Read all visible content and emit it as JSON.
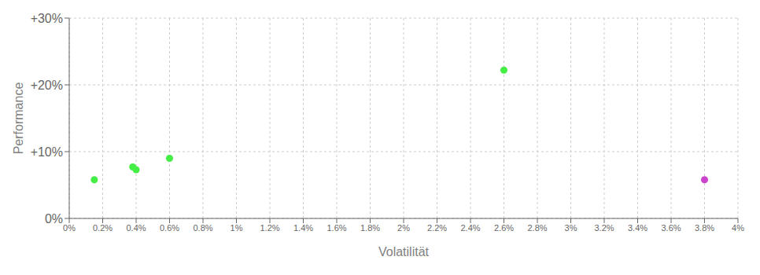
{
  "chart_data": {
    "type": "scatter",
    "xlabel": "Volatilität",
    "ylabel": "Performance",
    "xlim": [
      0,
      0.04
    ],
    "ylim": [
      0,
      0.3
    ],
    "xticks": [
      {
        "value": 0,
        "label": "0%"
      },
      {
        "value": 0.002,
        "label": "0.2%"
      },
      {
        "value": 0.004,
        "label": "0.4%"
      },
      {
        "value": 0.006,
        "label": "0.6%"
      },
      {
        "value": 0.008,
        "label": "0.8%"
      },
      {
        "value": 0.01,
        "label": "1%"
      },
      {
        "value": 0.012,
        "label": "1.2%"
      },
      {
        "value": 0.014,
        "label": "1.4%"
      },
      {
        "value": 0.016,
        "label": "1.6%"
      },
      {
        "value": 0.018,
        "label": "1.8%"
      },
      {
        "value": 0.02,
        "label": "2%"
      },
      {
        "value": 0.022,
        "label": "2.2%"
      },
      {
        "value": 0.024,
        "label": "2.4%"
      },
      {
        "value": 0.026,
        "label": "2.6%"
      },
      {
        "value": 0.028,
        "label": "2.8%"
      },
      {
        "value": 0.03,
        "label": "3%"
      },
      {
        "value": 0.032,
        "label": "3.2%"
      },
      {
        "value": 0.034,
        "label": "3.4%"
      },
      {
        "value": 0.036,
        "label": "3.6%"
      },
      {
        "value": 0.038,
        "label": "3.8%"
      },
      {
        "value": 0.04,
        "label": "4%"
      }
    ],
    "yticks": [
      {
        "value": 0,
        "label": "0%"
      },
      {
        "value": 0.1,
        "label": "+10%"
      },
      {
        "value": 0.2,
        "label": "+20%"
      },
      {
        "value": 0.3,
        "label": "+30%"
      }
    ],
    "grid": true,
    "series": [
      {
        "color": "#44ee44",
        "x": [
          0.0015,
          0.0038,
          0.004,
          0.006,
          0.026
        ],
        "values": [
          0.058,
          0.077,
          0.073,
          0.09,
          0.222
        ]
      },
      {
        "color": "#cc44cc",
        "x": [
          0.038
        ],
        "values": [
          0.058
        ]
      }
    ]
  }
}
